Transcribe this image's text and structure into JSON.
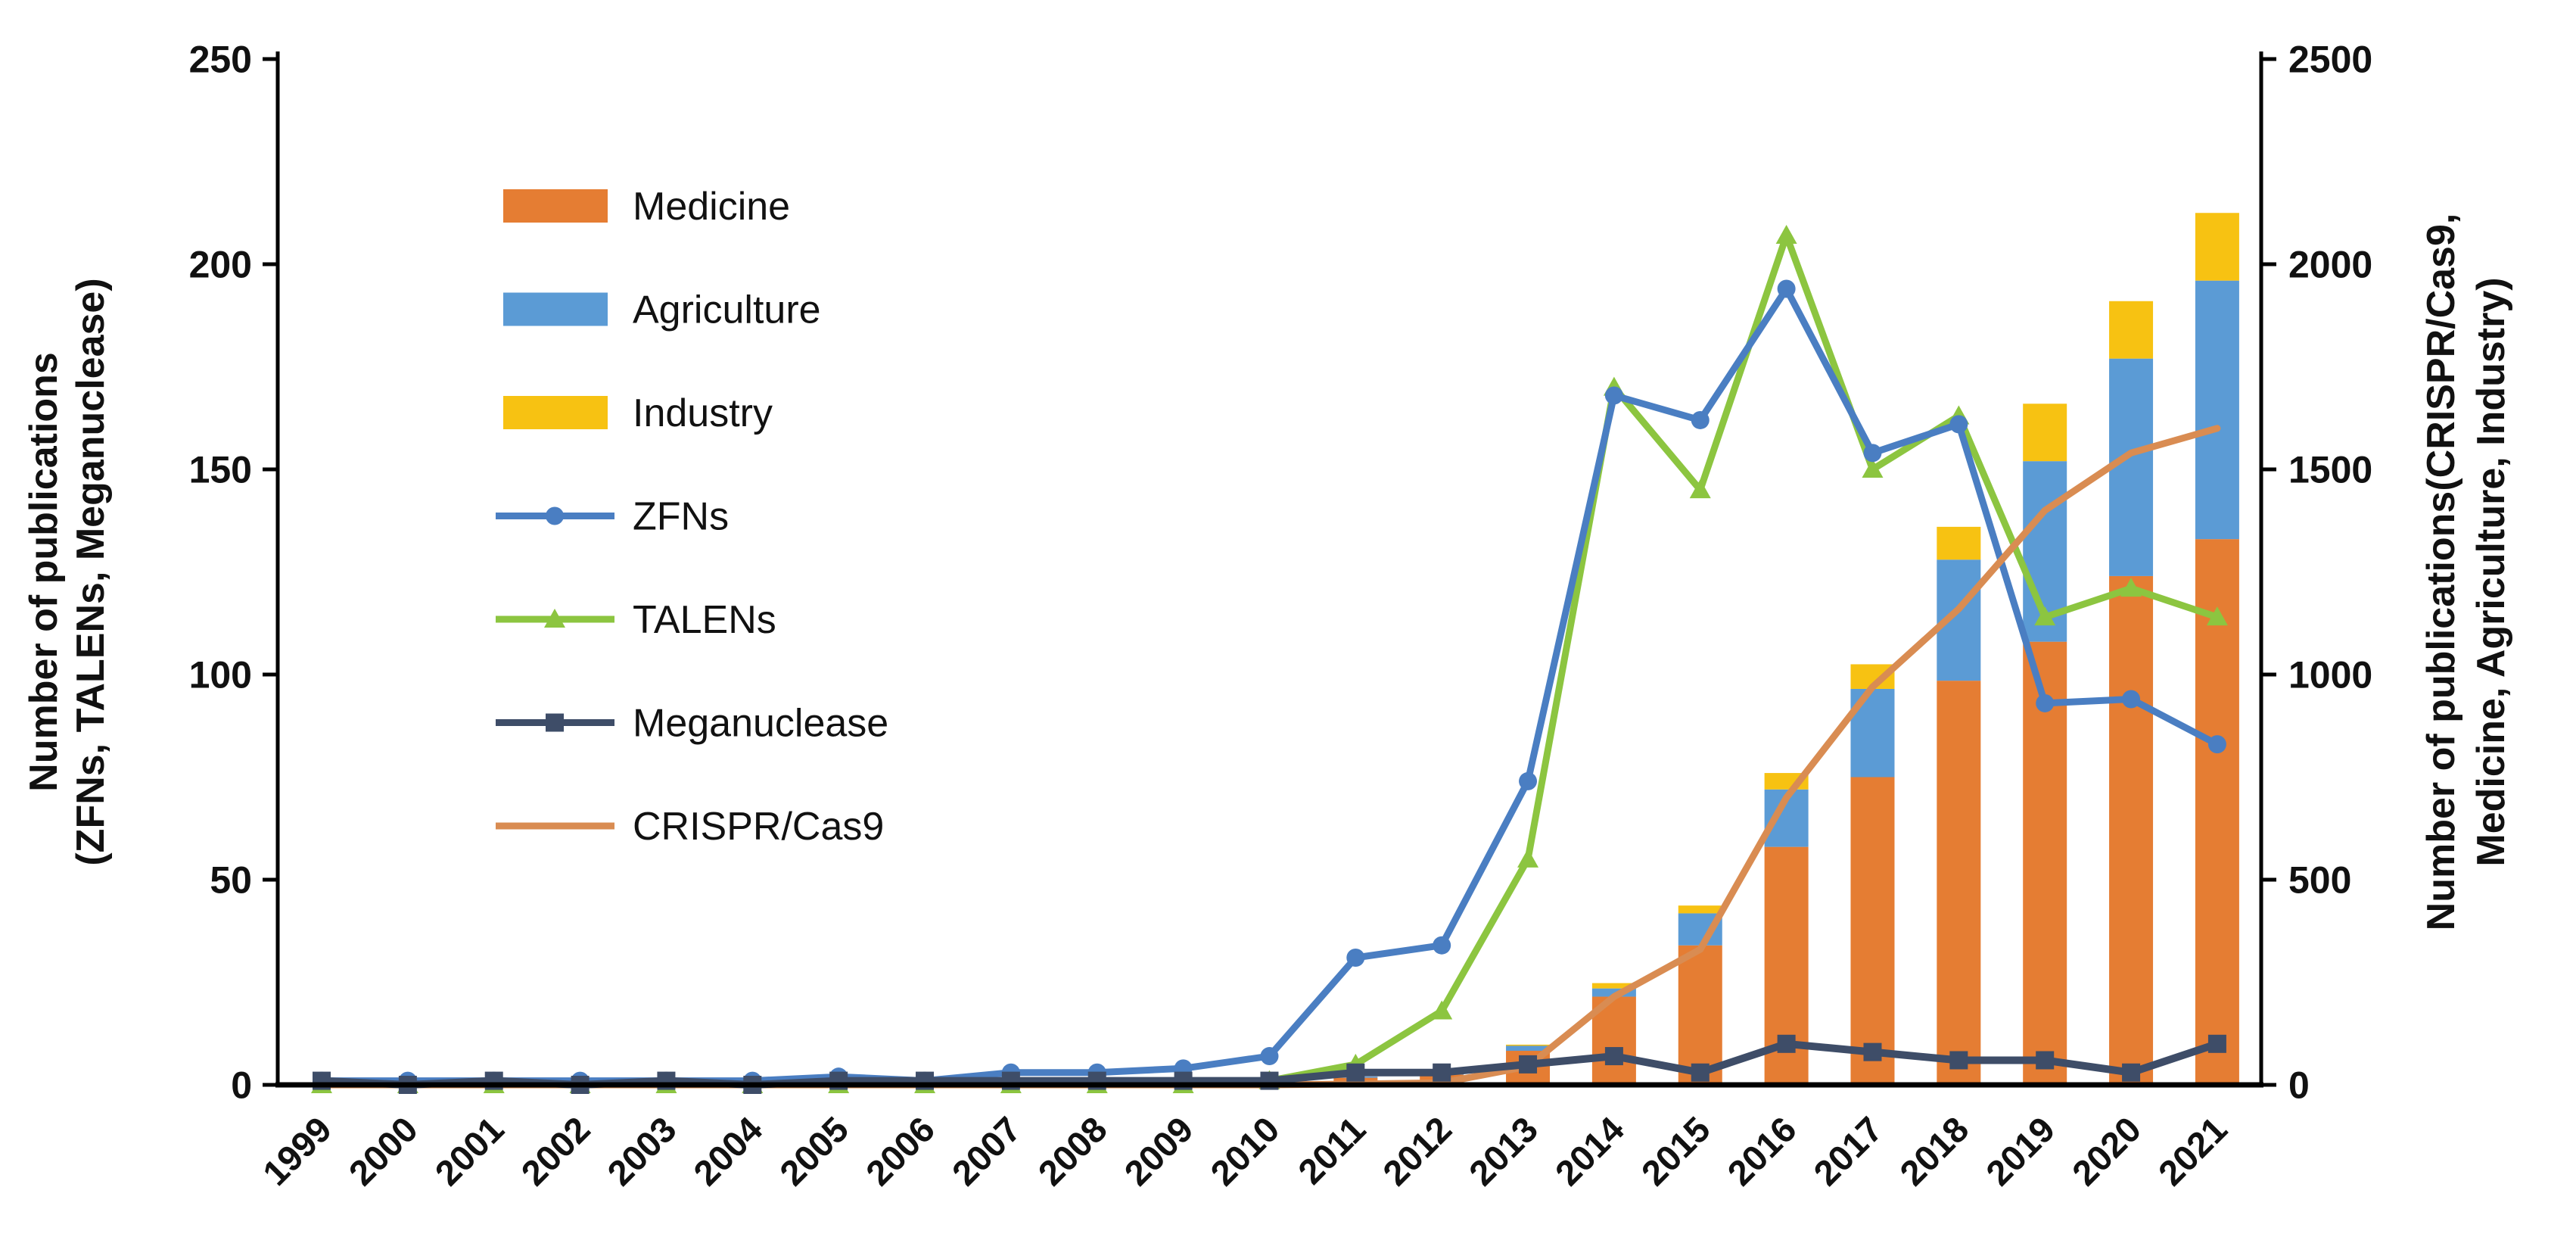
{
  "chart_data": {
    "type": "combo",
    "title": "",
    "background": "#FFFFFF",
    "grid": false,
    "categories": [
      "1999",
      "2000",
      "2001",
      "2002",
      "2003",
      "2004",
      "2005",
      "2006",
      "2007",
      "2008",
      "2009",
      "2010",
      "2011",
      "2012",
      "2013",
      "2014",
      "2015",
      "2016",
      "2017",
      "2018",
      "2019",
      "2020",
      "2021"
    ],
    "bar_series": [
      {
        "name": "Medicine",
        "color": "#E57D33",
        "axis": "right",
        "values": [
          0,
          0,
          0,
          0,
          0,
          0,
          0,
          0,
          0,
          0,
          0,
          0,
          18,
          25,
          83,
          215,
          340,
          580,
          750,
          985,
          1080,
          1240,
          1330
        ]
      },
      {
        "name": "Agriculture",
        "color": "#5B9BD5",
        "axis": "right",
        "values": [
          0,
          0,
          0,
          0,
          0,
          0,
          0,
          0,
          0,
          0,
          0,
          0,
          2,
          3,
          13,
          20,
          78,
          140,
          215,
          295,
          440,
          530,
          630
        ]
      },
      {
        "name": "Industry",
        "color": "#F7C212",
        "axis": "right",
        "values": [
          0,
          0,
          0,
          0,
          0,
          0,
          0,
          0,
          0,
          0,
          0,
          0,
          0,
          0,
          2,
          13,
          19,
          40,
          60,
          80,
          140,
          140,
          165
        ]
      }
    ],
    "line_series": [
      {
        "name": "ZFNs",
        "color": "#4A7EC2",
        "marker": "circle",
        "axis": "left",
        "values": [
          1,
          1,
          1,
          1,
          1,
          1,
          2,
          1,
          3,
          3,
          4,
          7,
          31,
          34,
          74,
          168,
          162,
          194,
          154,
          161,
          93,
          94,
          83
        ]
      },
      {
        "name": "TALENs",
        "color": "#8CC540",
        "marker": "triangle",
        "axis": "left",
        "values": [
          0,
          0,
          0,
          0,
          0,
          0,
          0,
          0,
          0,
          0,
          0,
          1,
          5,
          18,
          55,
          170,
          145,
          207,
          150,
          163,
          114,
          121,
          114
        ]
      },
      {
        "name": "Meganuclease",
        "color": "#3E4D68",
        "marker": "square",
        "axis": "left",
        "values": [
          1,
          0,
          1,
          0,
          1,
          0,
          1,
          1,
          1,
          1,
          1,
          1,
          3,
          3,
          5,
          7,
          3,
          10,
          8,
          6,
          6,
          3,
          10
        ]
      },
      {
        "name": "CRISPR/Cas9",
        "color": "#D98C52",
        "marker": "none",
        "axis": "right",
        "values": [
          0,
          0,
          0,
          0,
          0,
          0,
          0,
          0,
          0,
          0,
          0,
          0,
          2,
          5,
          45,
          215,
          330,
          700,
          970,
          1160,
          1400,
          1540,
          1600
        ]
      }
    ],
    "left_axis": {
      "title_lines": [
        "Number of publications",
        "(ZFNs, TALENs, Meganuclease)"
      ],
      "min": 0,
      "max": 250,
      "step": 50,
      "tick_labels": [
        "0",
        "50",
        "100",
        "150",
        "200",
        "250"
      ]
    },
    "right_axis": {
      "title_lines": [
        "Number of publications(CRISPR/Cas9,",
        "Medicine, Agriculture, Industry)"
      ],
      "min": 0,
      "max": 2500,
      "step": 500,
      "tick_labels": [
        "0",
        "500",
        "1000",
        "1500",
        "2000",
        "2500"
      ]
    },
    "legend": {
      "position": "inside-upper-left",
      "order": [
        "Medicine",
        "Agriculture",
        "Industry",
        "ZFNs",
        "TALENs",
        "Meganuclease",
        "CRISPR/Cas9"
      ]
    },
    "axis_color": "#000000"
  }
}
